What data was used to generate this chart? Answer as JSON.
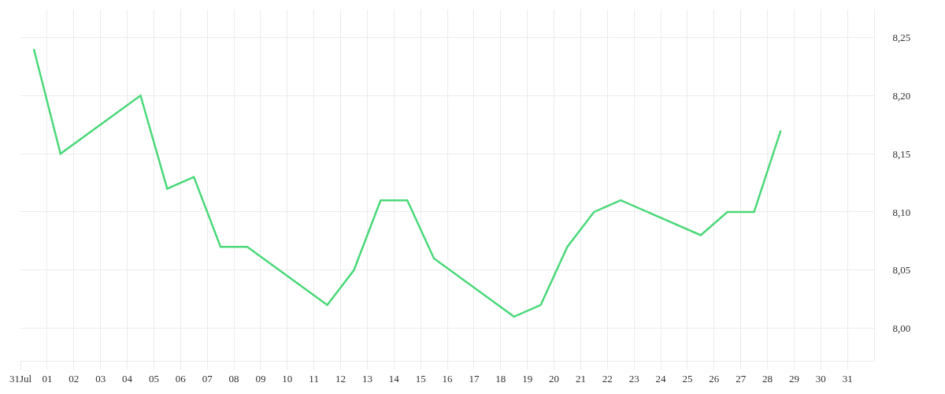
{
  "chart_data": {
    "type": "line",
    "x": [
      0.5,
      1.5,
      4.5,
      5.5,
      6.5,
      7.5,
      8.5,
      11.5,
      12.5,
      13.5,
      14.5,
      15.5,
      18.5,
      19.5,
      20.5,
      21.5,
      22.5,
      25.5,
      26.5,
      27.5,
      28.5
    ],
    "series": [
      {
        "color": "#4cd87a",
        "values": [
          8.24,
          8.15,
          8.2,
          8.12,
          8.13,
          8.07,
          8.07,
          8.02,
          8.05,
          8.11,
          8.11,
          8.06,
          8.01,
          8.02,
          8.07,
          8.1,
          8.11,
          8.08,
          8.1,
          8.1,
          8.17
        ]
      }
    ],
    "xlim": [
      0,
      32
    ],
    "xticks": [
      {
        "value": 0,
        "label": "31Jul"
      },
      {
        "value": 1,
        "label": "01"
      },
      {
        "value": 2,
        "label": "02"
      },
      {
        "value": 3,
        "label": "03"
      },
      {
        "value": 4,
        "label": "04"
      },
      {
        "value": 5,
        "label": "05"
      },
      {
        "value": 6,
        "label": "06"
      },
      {
        "value": 7,
        "label": "07"
      },
      {
        "value": 8,
        "label": "08"
      },
      {
        "value": 9,
        "label": "09"
      },
      {
        "value": 10,
        "label": "10"
      },
      {
        "value": 11,
        "label": "11"
      },
      {
        "value": 12,
        "label": "12"
      },
      {
        "value": 13,
        "label": "13"
      },
      {
        "value": 14,
        "label": "14"
      },
      {
        "value": 15,
        "label": "15"
      },
      {
        "value": 16,
        "label": "16"
      },
      {
        "value": 17,
        "label": "17"
      },
      {
        "value": 18,
        "label": "18"
      },
      {
        "value": 19,
        "label": "19"
      },
      {
        "value": 20,
        "label": "20"
      },
      {
        "value": 21,
        "label": "21"
      },
      {
        "value": 22,
        "label": "22"
      },
      {
        "value": 23,
        "label": "23"
      },
      {
        "value": 24,
        "label": "24"
      },
      {
        "value": 25,
        "label": "25"
      },
      {
        "value": 26,
        "label": "26"
      },
      {
        "value": 27,
        "label": "27"
      },
      {
        "value": 28,
        "label": "28"
      },
      {
        "value": 29,
        "label": "29"
      },
      {
        "value": 30,
        "label": "30"
      },
      {
        "value": 31,
        "label": "31"
      }
    ],
    "ylim": [
      7.972,
      8.274
    ],
    "yticks": [
      {
        "value": 8.0,
        "label": "8,00"
      },
      {
        "value": 8.05,
        "label": "8,05"
      },
      {
        "value": 8.1,
        "label": "8,10"
      },
      {
        "value": 8.15,
        "label": "8,15"
      },
      {
        "value": 8.2,
        "label": "8,20"
      },
      {
        "value": 8.25,
        "label": "8,25"
      }
    ],
    "grid": true,
    "marker": "none",
    "line_style": "solid"
  }
}
